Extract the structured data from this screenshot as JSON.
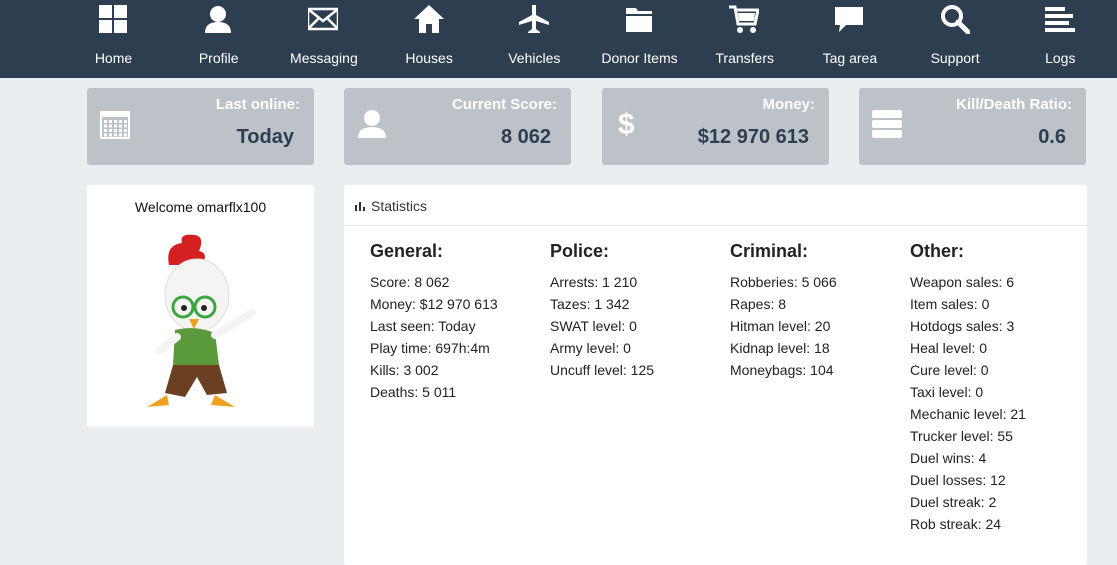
{
  "nav": [
    "Home",
    "Profile",
    "Messaging",
    "Houses",
    "Vehicles",
    "Donor Items",
    "Transfers",
    "Tag area",
    "Support",
    "Logs"
  ],
  "cards": [
    {
      "label": "Last online:",
      "value": "Today"
    },
    {
      "label": "Current Score:",
      "value": "8 062"
    },
    {
      "label": "Money:",
      "value": "$12 970 613"
    },
    {
      "label": "Kill/Death Ratio:",
      "value": "0.6"
    }
  ],
  "profile": {
    "welcome": "Welcome omarflx100"
  },
  "statistics": {
    "title": "Statistics",
    "sections": [
      {
        "heading": "General:",
        "items": [
          "Score: 8 062",
          "Money: $12 970 613",
          "Last seen: Today",
          "Play time: 697h:4m",
          "Kills: 3 002",
          "Deaths: 5 011"
        ]
      },
      {
        "heading": "Police:",
        "items": [
          "Arrests: 1 210",
          "Tazes: 1 342",
          "SWAT level: 0",
          "Army level: 0",
          "Uncuff level: 125"
        ]
      },
      {
        "heading": "Criminal:",
        "items": [
          "Robberies: 5 066",
          "Rapes: 8",
          "Hitman level: 20",
          "Kidnap level: 18",
          "Moneybags: 104"
        ]
      },
      {
        "heading": "Other:",
        "items": [
          "Weapon sales: 6",
          "Item sales: 0",
          "Hotdogs sales: 3",
          "Heal level: 0",
          "Cure level: 0",
          "Taxi level: 0",
          "Mechanic level: 21",
          "Trucker level: 55",
          "Duel wins: 4",
          "Duel losses: 12",
          "Duel streak: 2",
          "Rob streak: 24"
        ]
      }
    ]
  }
}
